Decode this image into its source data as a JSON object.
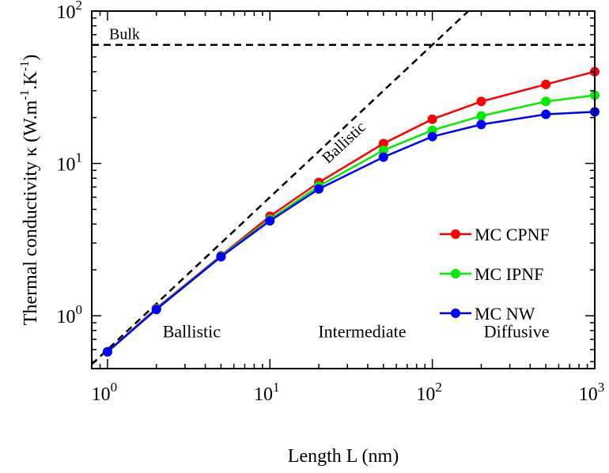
{
  "chart_data": {
    "type": "line",
    "xlabel": "Length L (nm)",
    "ylabel": "Thermal conductivity κ (W.m",
    "ylabel_exp1": "-1",
    "ylabel_mid": ".K",
    "ylabel_exp2": "-1",
    "ylabel_end": ")",
    "xscale": "log",
    "yscale": "log",
    "xlim": [
      0.8,
      1000
    ],
    "ylim": [
      0.45,
      100
    ],
    "x_ticks": [
      {
        "base": "10",
        "exp": "0",
        "value": 1
      },
      {
        "base": "10",
        "exp": "1",
        "value": 10
      },
      {
        "base": "10",
        "exp": "2",
        "value": 100
      },
      {
        "base": "10",
        "exp": "3",
        "value": 1000
      }
    ],
    "y_ticks": [
      {
        "base": "10",
        "exp": "0",
        "value": 1
      },
      {
        "base": "10",
        "exp": "1",
        "value": 10
      },
      {
        "base": "10",
        "exp": "2",
        "value": 100
      }
    ],
    "grid": false,
    "legend_position": "right-middle",
    "x": [
      1,
      2,
      5,
      10,
      20,
      50,
      100,
      200,
      500,
      1000
    ],
    "series": [
      {
        "name": "MC CPNF",
        "color": "#ff0000",
        "values": [
          0.58,
          1.12,
          2.48,
          4.5,
          7.5,
          13.5,
          19.5,
          25.5,
          33,
          40
        ]
      },
      {
        "name": "MC IPNF",
        "color": "#00ee00",
        "values": [
          0.58,
          1.11,
          2.46,
          4.3,
          7.1,
          12.2,
          16.5,
          20.5,
          25.5,
          28
        ]
      },
      {
        "name": "MC NW",
        "color": "#0000ff",
        "values": [
          0.58,
          1.1,
          2.44,
          4.2,
          6.8,
          11,
          15,
          18,
          21,
          21.8
        ]
      }
    ],
    "reference_lines": [
      {
        "label": "Bulk",
        "type": "horizontal",
        "y": 60
      },
      {
        "label": "Ballistic",
        "type": "line",
        "points": [
          [
            0.8,
            0.48
          ],
          [
            300,
            180
          ]
        ]
      }
    ],
    "region_labels": [
      {
        "text": "Ballistic",
        "x": 3.3,
        "y": 0.72
      },
      {
        "text": "Intermediate",
        "x": 37,
        "y": 0.72
      },
      {
        "text": "Diffusive",
        "x": 330,
        "y": 0.72
      }
    ]
  }
}
